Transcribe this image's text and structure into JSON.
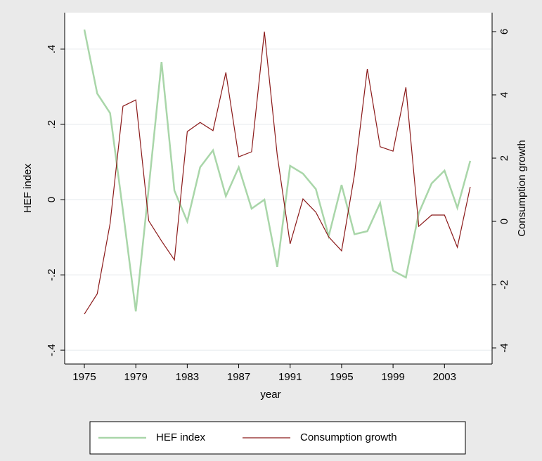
{
  "chart_data": {
    "type": "line",
    "x_label": "year",
    "y_label": "HEF index",
    "y2_label": "Consumption growth",
    "x": [
      1975,
      1976,
      1977,
      1978,
      1979,
      1980,
      1981,
      1982,
      1983,
      1984,
      1985,
      1986,
      1987,
      1988,
      1989,
      1990,
      1991,
      1992,
      1993,
      1994,
      1995,
      1996,
      1997,
      1998,
      1999,
      2000,
      2001,
      2002,
      2003,
      2004,
      2005
    ],
    "series": [
      {
        "name": "HEF index",
        "color": "#a9d6a9",
        "axis": "y",
        "values": [
          0.452,
          0.282,
          0.23,
          -0.03,
          -0.297,
          0.03,
          0.366,
          0.024,
          -0.058,
          0.086,
          0.131,
          0.009,
          0.086,
          -0.024,
          0.0,
          -0.179,
          0.09,
          0.069,
          0.028,
          -0.097,
          0.039,
          -0.092,
          -0.084,
          -0.009,
          -0.189,
          -0.207,
          -0.036,
          0.043,
          0.077,
          -0.022,
          0.103
        ]
      },
      {
        "name": "Consumption growth",
        "color": "#8b1a1a",
        "axis": "y2",
        "values": [
          -2.93,
          -2.29,
          -0.07,
          3.64,
          3.84,
          0.02,
          -0.62,
          -1.22,
          2.84,
          3.13,
          2.87,
          4.71,
          2.04,
          2.2,
          6.0,
          2.09,
          -0.71,
          0.71,
          0.29,
          -0.49,
          -0.93,
          1.47,
          4.82,
          2.36,
          2.22,
          4.24,
          -0.16,
          0.2,
          0.2,
          -0.82,
          1.09
        ]
      }
    ],
    "xlim": [
      1973.47,
      2006.7
    ],
    "xticks": [
      1975,
      1979,
      1983,
      1987,
      1991,
      1995,
      1999,
      2003
    ],
    "ylim": [
      -0.437,
      0.497
    ],
    "yticks": [
      {
        "value": -0.4,
        "label": "-.4"
      },
      {
        "value": -0.2,
        "label": "-.2"
      },
      0,
      {
        "value": 0.2,
        "label": ".2"
      },
      {
        "value": 0.4,
        "label": ".4"
      }
    ],
    "y2lim": [
      -4.51,
      6.6
    ],
    "y2ticks": [
      -4,
      -2,
      0,
      2,
      4,
      6
    ],
    "grid": true,
    "legend": "bottom"
  }
}
